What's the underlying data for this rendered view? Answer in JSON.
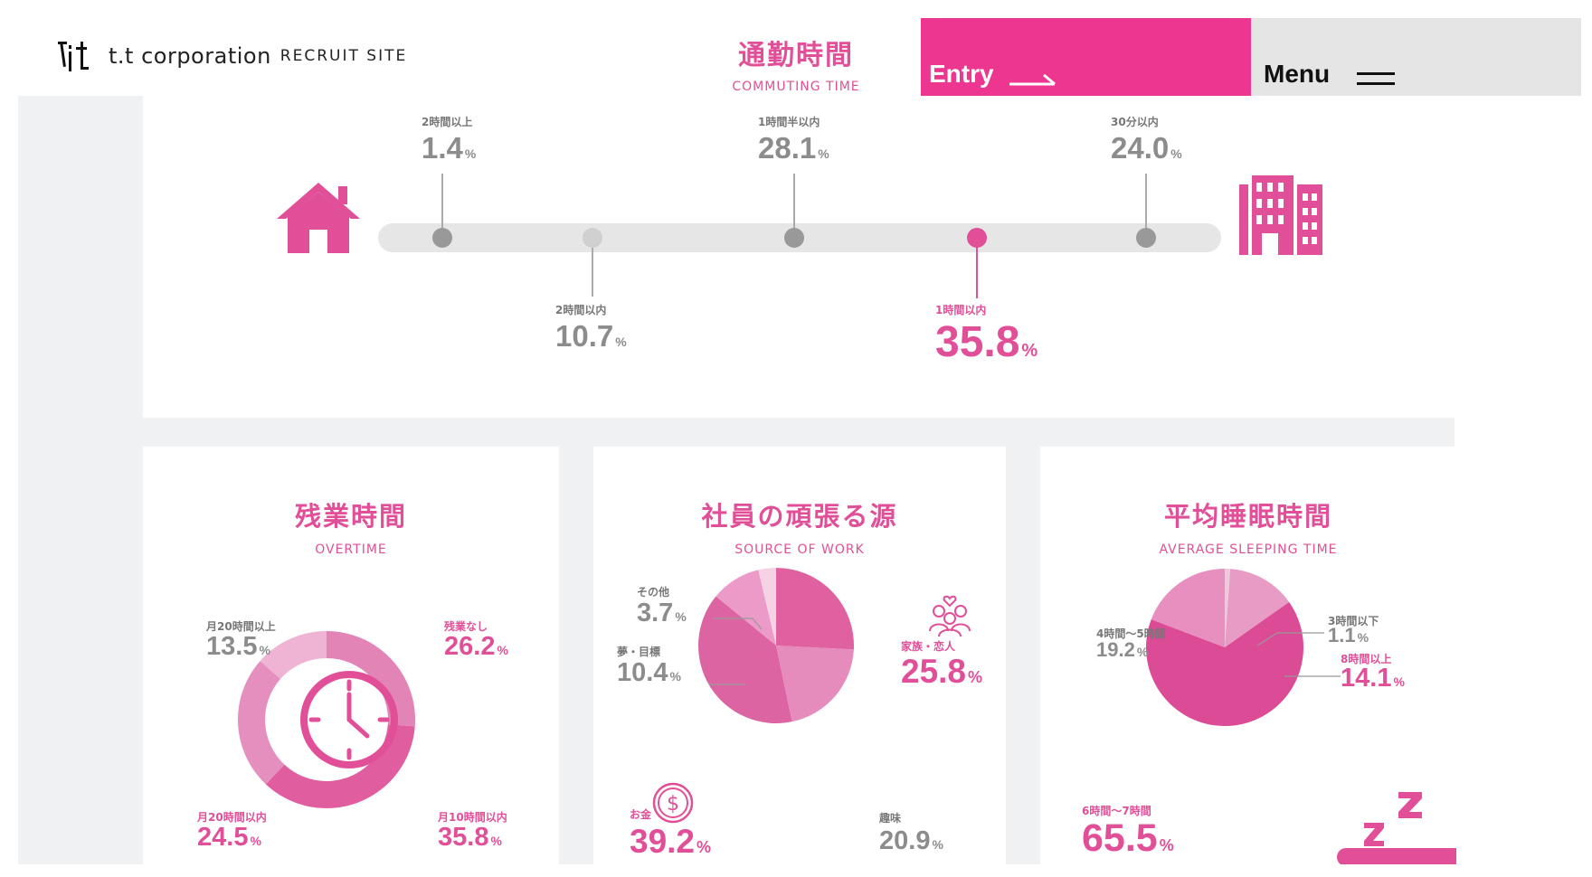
{
  "header": {
    "logo_text": "t.t corporation",
    "logo_sub": "RECRUIT SITE",
    "section_jp": "通勤時間",
    "section_en": "COMMUTING TIME",
    "entry_label": "Entry",
    "menu_label": "Menu"
  },
  "colors": {
    "accent": "#ec3690",
    "pink_text": "#e14f98",
    "gray_value": "#8c8c8c",
    "background": "#f0f1f3"
  },
  "commute": {
    "stats": [
      {
        "label": "2時間以上",
        "value": "1.4",
        "unit": "%"
      },
      {
        "label": "2時間以内",
        "value": "10.7",
        "unit": "%"
      },
      {
        "label": "1時間半以内",
        "value": "28.1",
        "unit": "%"
      },
      {
        "label": "1時間以内",
        "value": "35.8",
        "unit": "%"
      },
      {
        "label": "30分以内",
        "value": "24.0",
        "unit": "%"
      }
    ],
    "home_icon": "house-icon",
    "office_icon": "office-building-icon"
  },
  "overtime": {
    "title_jp": "残業時間",
    "title_en": "OVERTIME",
    "icon": "clock-icon",
    "items": [
      {
        "label": "残業なし",
        "value": "26.2",
        "unit": "%"
      },
      {
        "label": "月10時間以内",
        "value": "35.8",
        "unit": "%"
      },
      {
        "label": "月20時間以内",
        "value": "24.5",
        "unit": "%"
      },
      {
        "label": "月20時間以上",
        "value": "13.5",
        "unit": "%"
      }
    ]
  },
  "source_of_work": {
    "title_jp": "社員の頑張る源",
    "title_en": "SOURCE OF WORK",
    "icons": [
      "family-icon",
      "money-coin-icon"
    ],
    "items": [
      {
        "label": "家族・恋人",
        "value": "25.8",
        "unit": "%"
      },
      {
        "label": "趣味",
        "value": "20.9",
        "unit": "%"
      },
      {
        "label": "お金",
        "value": "39.2",
        "unit": "%"
      },
      {
        "label": "夢・目標",
        "value": "10.4",
        "unit": "%"
      },
      {
        "label": "その他",
        "value": "3.7",
        "unit": "%"
      }
    ]
  },
  "sleeping": {
    "title_jp": "平均睡眠時間",
    "title_en": "AVERAGE SLEEPING TIME",
    "icon": "sleeping-zzz-icon",
    "items": [
      {
        "label": "3時間以下",
        "value": "1.1",
        "unit": "%"
      },
      {
        "label": "8時間以上",
        "value": "14.1",
        "unit": "%"
      },
      {
        "label": "6時間〜7時間",
        "value": "65.5",
        "unit": "%"
      },
      {
        "label": "4時間〜5時間",
        "value": "19.2",
        "unit": "%"
      }
    ]
  },
  "chart_data": [
    {
      "type": "pie",
      "title": "残業時間",
      "categories": [
        "残業なし",
        "月10時間以内",
        "月20時間以内",
        "月20時間以上"
      ],
      "values": [
        26.2,
        35.8,
        24.5,
        13.5
      ]
    },
    {
      "type": "pie",
      "title": "社員の頑張る源",
      "categories": [
        "家族・恋人",
        "趣味",
        "お金",
        "夢・目標",
        "その他"
      ],
      "values": [
        25.8,
        20.9,
        39.2,
        10.4,
        3.7
      ]
    },
    {
      "type": "pie",
      "title": "平均睡眠時間",
      "categories": [
        "3時間以下",
        "8時間以上",
        "6時間〜7時間",
        "4時間〜5時間"
      ],
      "values": [
        1.1,
        14.1,
        65.5,
        19.2
      ]
    }
  ]
}
